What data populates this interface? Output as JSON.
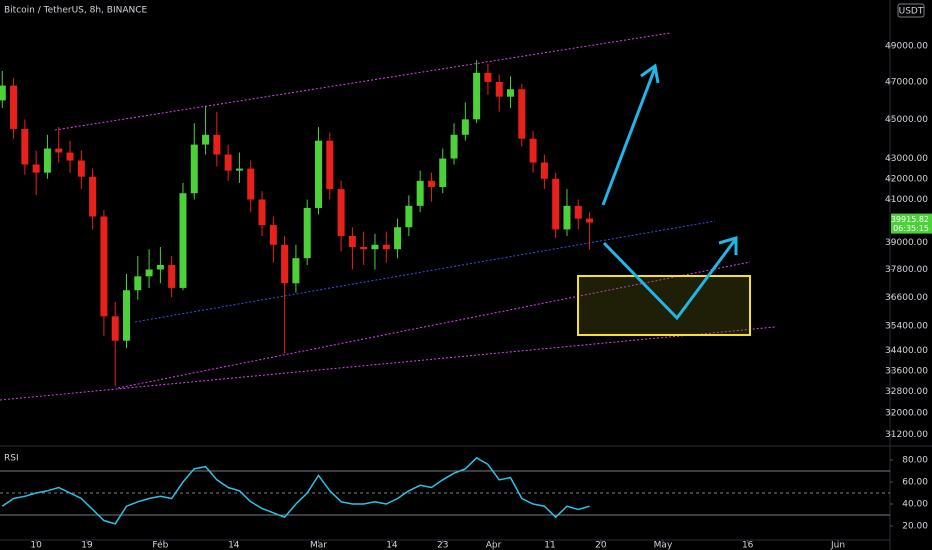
{
  "chart_data": [
    {
      "type": "candlestick",
      "title": "Bitcoin / TetherUS, 8h, BINANCE",
      "currency": "USDT",
      "last_price": 39915.82,
      "countdown": "06:35:15",
      "colors": {
        "up": "#4cd13a",
        "down": "#e8221b"
      },
      "log_scale": true,
      "x": [
        4,
        6,
        8,
        10,
        12,
        14,
        16,
        18,
        20,
        22,
        24,
        26,
        28,
        30,
        32,
        34,
        36,
        38,
        40,
        42,
        44,
        46,
        48,
        50,
        52,
        54,
        56,
        58,
        60,
        62,
        64,
        66,
        68,
        70,
        72,
        74,
        76,
        78,
        80,
        82,
        84,
        86,
        88,
        90,
        92,
        94,
        96,
        98,
        100,
        102,
        104,
        106,
        108
      ],
      "open": [
        46000,
        46800,
        44500,
        42700,
        42300,
        43500,
        43300,
        42900,
        42100,
        40200,
        35800,
        34800,
        36900,
        37500,
        37800,
        38000,
        37000,
        41300,
        43700,
        44200,
        43200,
        42400,
        42500,
        41000,
        39800,
        38900,
        37200,
        38300,
        40600,
        43900,
        41500,
        39300,
        38800,
        38700,
        38900,
        38700,
        39700,
        40700,
        41900,
        41600,
        43000,
        44200,
        45000,
        47500,
        47000,
        46200,
        46600,
        44000,
        42800,
        42000,
        39600,
        40700,
        40100
      ],
      "high": [
        47600,
        47200,
        45000,
        43400,
        44200,
        44600,
        43900,
        43400,
        42500,
        40500,
        36400,
        37600,
        38400,
        38700,
        38800,
        38400,
        41800,
        44800,
        45700,
        45400,
        43700,
        43300,
        42900,
        41400,
        40200,
        39300,
        38900,
        41000,
        44600,
        44300,
        41900,
        39700,
        39500,
        39400,
        39500,
        40100,
        41200,
        42400,
        42300,
        43500,
        44800,
        45900,
        48200,
        48000,
        47400,
        47300,
        46900,
        44400,
        43200,
        42300,
        41500,
        41000,
        40400
      ],
      "low": [
        45600,
        44000,
        42200,
        41200,
        42000,
        42800,
        42300,
        41500,
        39600,
        35000,
        33000,
        34500,
        36500,
        37000,
        37200,
        36600,
        36900,
        41000,
        43200,
        42600,
        41900,
        41800,
        40400,
        39300,
        38100,
        34300,
        36800,
        38000,
        40300,
        41000,
        38600,
        37800,
        38000,
        37800,
        38100,
        38300,
        39300,
        40400,
        40900,
        41300,
        42700,
        43900,
        44800,
        46300,
        45400,
        45600,
        43600,
        42300,
        41500,
        39200,
        39300,
        39600,
        38700
      ],
      "close": [
        46800,
        44500,
        42700,
        42300,
        43500,
        43300,
        42900,
        42100,
        40200,
        35800,
        34800,
        36900,
        37500,
        37800,
        38000,
        37000,
        41300,
        43700,
        44200,
        43200,
        42400,
        42500,
        41000,
        39800,
        38900,
        37200,
        38300,
        40600,
        43900,
        41500,
        39300,
        38800,
        38700,
        38900,
        38700,
        39700,
        40700,
        41900,
        41600,
        43000,
        44200,
        45000,
        47500,
        47000,
        46200,
        46600,
        44000,
        42800,
        42000,
        39600,
        40700,
        40100,
        39915.82
      ],
      "xlim": [
        3.6,
        161.2
      ],
      "xticks": [
        {
          "value": 10,
          "label": "10"
        },
        {
          "value": 19,
          "label": "19"
        },
        {
          "value": 32,
          "label": "Feb"
        },
        {
          "value": 45,
          "label": "14"
        },
        {
          "value": 60,
          "label": "Mar"
        },
        {
          "value": 73,
          "label": "14"
        },
        {
          "value": 82,
          "label": "23"
        },
        {
          "value": 91,
          "label": "Apr"
        },
        {
          "value": 101,
          "label": "11"
        },
        {
          "value": 110,
          "label": "20"
        },
        {
          "value": 121,
          "label": "May"
        },
        {
          "value": 136,
          "label": "16"
        },
        {
          "value": 152,
          "label": "Jun"
        }
      ],
      "ylim": [
        30830,
        51690
      ],
      "yticks": [
        {
          "value": 49000,
          "label": "49000.00"
        },
        {
          "value": 47000,
          "label": "47000.00"
        },
        {
          "value": 45000,
          "label": "45000.00"
        },
        {
          "value": 43000,
          "label": "43000.00"
        },
        {
          "value": 42000,
          "label": "42000.00"
        },
        {
          "value": 41000,
          "label": "41000.00"
        },
        {
          "value": 39000,
          "label": "39000.00"
        },
        {
          "value": 37800,
          "label": "37800.00"
        },
        {
          "value": 36600,
          "label": "36600.00"
        },
        {
          "value": 35400,
          "label": "35400.00"
        },
        {
          "value": 34400,
          "label": "34400.00"
        },
        {
          "value": 33600,
          "label": "33600.00"
        },
        {
          "value": 32800,
          "label": "32800.00"
        },
        {
          "value": 32000,
          "label": "32000.00"
        },
        {
          "value": 31200,
          "label": "31200.00"
        }
      ]
    },
    {
      "type": "line",
      "title": "RSI",
      "color": "#2bc3e8",
      "x": [
        4,
        6,
        8,
        10,
        12,
        14,
        16,
        18,
        20,
        22,
        24,
        26,
        28,
        30,
        32,
        34,
        36,
        38,
        40,
        42,
        44,
        46,
        48,
        50,
        52,
        54,
        56,
        58,
        60,
        62,
        64,
        66,
        68,
        70,
        72,
        74,
        76,
        78,
        80,
        82,
        84,
        86,
        88,
        90,
        92,
        94,
        96,
        98,
        100,
        102,
        104,
        106,
        108
      ],
      "values": [
        38,
        45,
        47,
        50,
        52,
        55,
        50,
        45,
        35,
        25,
        22,
        38,
        42,
        45,
        47,
        45,
        60,
        72,
        74,
        62,
        55,
        52,
        42,
        36,
        32,
        28,
        40,
        50,
        66,
        52,
        42,
        40,
        40,
        42,
        40,
        45,
        52,
        57,
        55,
        62,
        68,
        72,
        82,
        76,
        62,
        64,
        45,
        40,
        38,
        28,
        38,
        35,
        38
      ],
      "bands": [
        70,
        50,
        30
      ],
      "ylim": [
        7.3,
        90.9
      ],
      "yticks": [
        {
          "value": 80,
          "label": "80.00"
        },
        {
          "value": 60,
          "label": "60.00"
        },
        {
          "value": 40,
          "label": "40.00"
        },
        {
          "value": 20,
          "label": "20.00"
        }
      ]
    }
  ]
}
